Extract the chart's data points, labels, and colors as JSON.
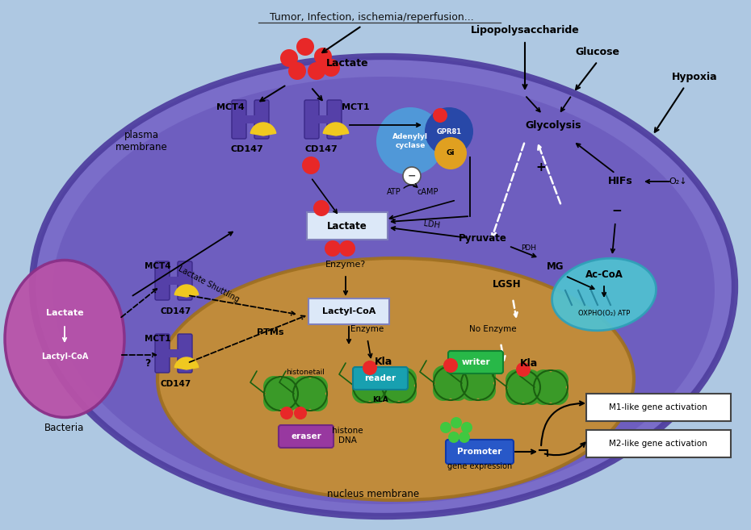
{
  "bg_color": "#adc8e0",
  "cell_color": "#6a55bb",
  "nucleus_color": "#c89030",
  "bacteria_color": "#b050a0",
  "mitochondria_color": "#50c8d8",
  "top_text": "Tumor, Infection, ischemia/reperfusion...",
  "labels": {
    "plasma_membrane": "plasma\nmembrane",
    "MCT4_top": "MCT4",
    "MCT1_top": "MCT1",
    "CD147_top1": "CD147",
    "CD147_top2": "CD147",
    "Lactate_top": "Lactate",
    "Lipopolysaccharide": "Lipopolysaccharide",
    "Glucose": "Glucose",
    "Hypoxia": "Hypoxia",
    "Glycolysis": "Glycolysis",
    "HIFs": "HIFs",
    "O2": "O₂↓",
    "AcCoA": "Ac-CoA",
    "OXPHO": "OXPHO(O₂) ATP",
    "GPR81": "GPR81",
    "Gi": "Gi",
    "Adenylyl": "Adenylyl\ncyclase",
    "ATP": "ATP",
    "cAMP": "cAMP",
    "Lactate_box": "Lactate",
    "LDH": "LDH",
    "Pyruvate": "Pyruvate",
    "PDH": "PDH",
    "MG": "MG",
    "LGSH": "LGSH",
    "Enzyme_q": "Enzyme?",
    "LactylCoA": "Lactyl-CoA",
    "PTMs": "PTMs",
    "Enzyme_n": "Enzyme",
    "No_Enzyme": "No Enzyme",
    "Kla1": "Kla",
    "Kla2": "Kla",
    "writer": "writer",
    "reader": "reader",
    "KLA": "KLA",
    "eraser": "eraser",
    "histonetail": "histonetail",
    "histone_DNA": "histone\nDNA",
    "Promoter": "Promoter",
    "gene_expression": "gene expression",
    "nucleus_membrane": "nucleus membrane",
    "M1_gene": "M1-like gene activation",
    "M2_gene": "M2-like gene activation",
    "Lactate_shuttling": "Lactate Shuttling",
    "MCT4_left": "MCT4",
    "MCT1_left": "MCT1",
    "CD147_left1": "CD147",
    "CD147_left2": "CD147",
    "Lactate_bact": "Lactate",
    "LactylCoA_bact": "Lactyl-CoA",
    "Bacteria": "Bacteria",
    "minus": "−",
    "plus": "+"
  }
}
